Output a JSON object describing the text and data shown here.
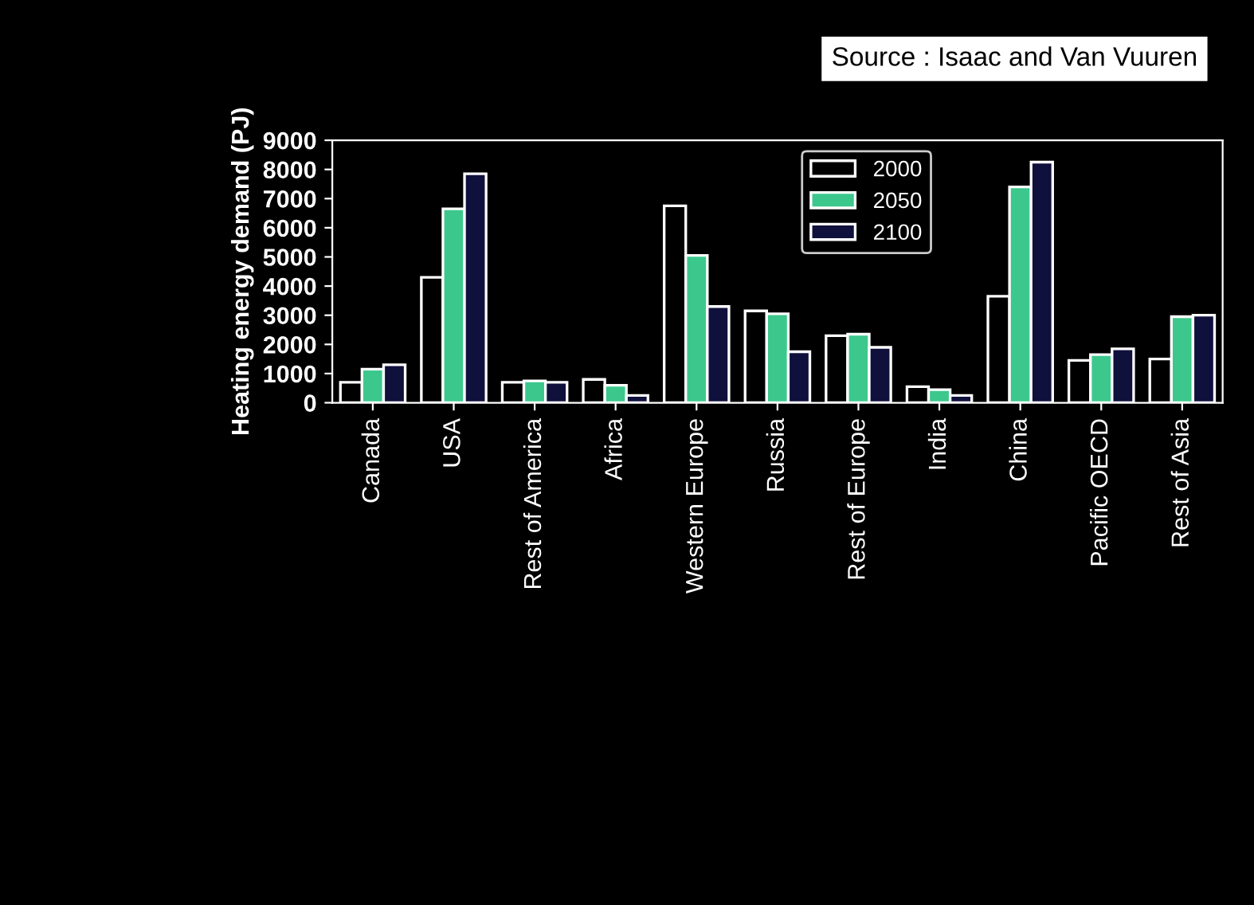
{
  "chart_data": {
    "type": "bar",
    "ylabel": "Heating energy demand (PJ)",
    "categories": [
      "Canada",
      "USA",
      "Rest of America",
      "Africa",
      "Western Europe",
      "Russia",
      "Rest of Europe",
      "India",
      "China",
      "Pacific OECD",
      "Rest of Asia"
    ],
    "series": [
      {
        "name": "2000",
        "color": "#000000",
        "values": [
          700,
          4300,
          700,
          800,
          6750,
          3150,
          2300,
          550,
          3650,
          1450,
          1500
        ]
      },
      {
        "name": "2050",
        "color": "#3cc88c",
        "values": [
          1150,
          6650,
          750,
          600,
          5050,
          3050,
          2350,
          450,
          7400,
          1650,
          2950
        ]
      },
      {
        "name": "2100",
        "color": "#10103c",
        "values": [
          1300,
          7850,
          700,
          250,
          3300,
          1750,
          1900,
          250,
          8250,
          1850,
          3000
        ]
      }
    ],
    "ylim": [
      0,
      9000
    ],
    "yticks": [
      0,
      1000,
      2000,
      3000,
      4000,
      5000,
      6000,
      7000,
      8000,
      9000
    ],
    "grid": false,
    "legend": "top",
    "annotations": [
      "Source : Isaac and Van Vuuren"
    ]
  }
}
